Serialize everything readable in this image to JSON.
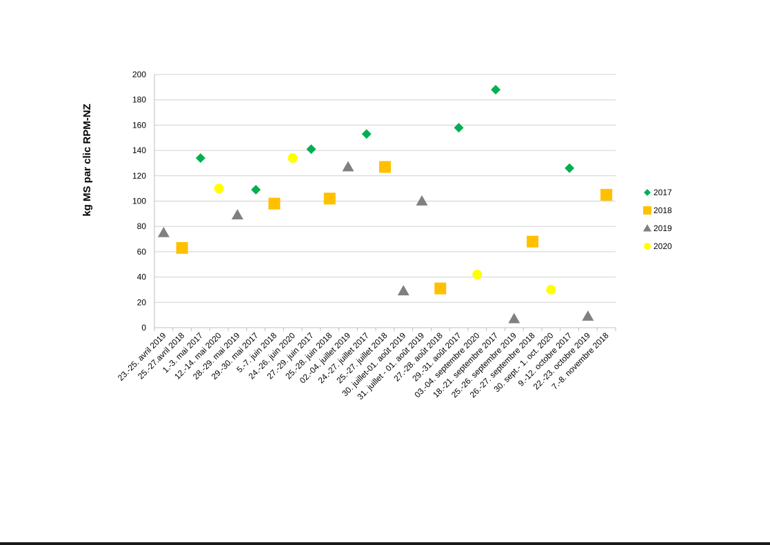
{
  "chart_data": {
    "type": "scatter",
    "title": "",
    "xlabel": "",
    "ylabel": "kg MS par clic RPM-NZ",
    "ylim": [
      0,
      200
    ],
    "yticks": [
      0,
      20,
      40,
      60,
      80,
      100,
      120,
      140,
      160,
      180,
      200
    ],
    "grid": true,
    "legend_position": "right",
    "categories": [
      "23.-25. avril 2019",
      "25.-27.avril 2018",
      "1.-3. mai 2017",
      "12.-14. mai 2020",
      "28.-29. mai 2019",
      "29.-30. mai 2017",
      "5.-7. juin 2018",
      "24.-26. juin 2020",
      "27.-29. juin 2017",
      "25.-28. juin 2018",
      "02.-04. juillet 2019",
      "24.-27. juillet 2017",
      "25.-27. juillet 2018",
      "30. juillet-01. août 2019",
      "31. juillet - 01. août 2019",
      "27.-28. août 2018",
      "29.-31. août 2017",
      "03.-04. septembre 2020",
      "18.-21. septembre 2017",
      "25.-26. septembre 2019",
      "26.-27. septembre 2018",
      "30. sept.- 1. oct. 2020",
      "9.-12. octobre 2017",
      "22.-23. octobre 2019",
      "7.-8. novembre 2018"
    ],
    "series": [
      {
        "name": "2017",
        "color": "#00B050",
        "marker": "diamond",
        "points": [
          [
            2,
            134
          ],
          [
            5,
            109
          ],
          [
            8,
            141
          ],
          [
            11,
            153
          ],
          [
            16,
            158
          ],
          [
            18,
            188
          ],
          [
            22,
            126
          ]
        ]
      },
      {
        "name": "2018",
        "color": "#FFC000",
        "marker": "square",
        "points": [
          [
            1,
            63
          ],
          [
            6,
            98
          ],
          [
            9,
            102
          ],
          [
            12,
            127
          ],
          [
            15,
            31
          ],
          [
            20,
            68
          ],
          [
            24,
            105
          ]
        ]
      },
      {
        "name": "2019",
        "color": "#808080",
        "marker": "triangle",
        "points": [
          [
            0,
            75
          ],
          [
            4,
            89
          ],
          [
            10,
            127
          ],
          [
            13,
            29
          ],
          [
            14,
            100
          ],
          [
            19,
            7
          ],
          [
            23,
            9
          ]
        ]
      },
      {
        "name": "2020",
        "color": "#FFFF00",
        "marker": "circle",
        "points": [
          [
            3,
            110
          ],
          [
            7,
            134
          ],
          [
            17,
            42
          ],
          [
            21,
            30
          ]
        ]
      }
    ]
  }
}
